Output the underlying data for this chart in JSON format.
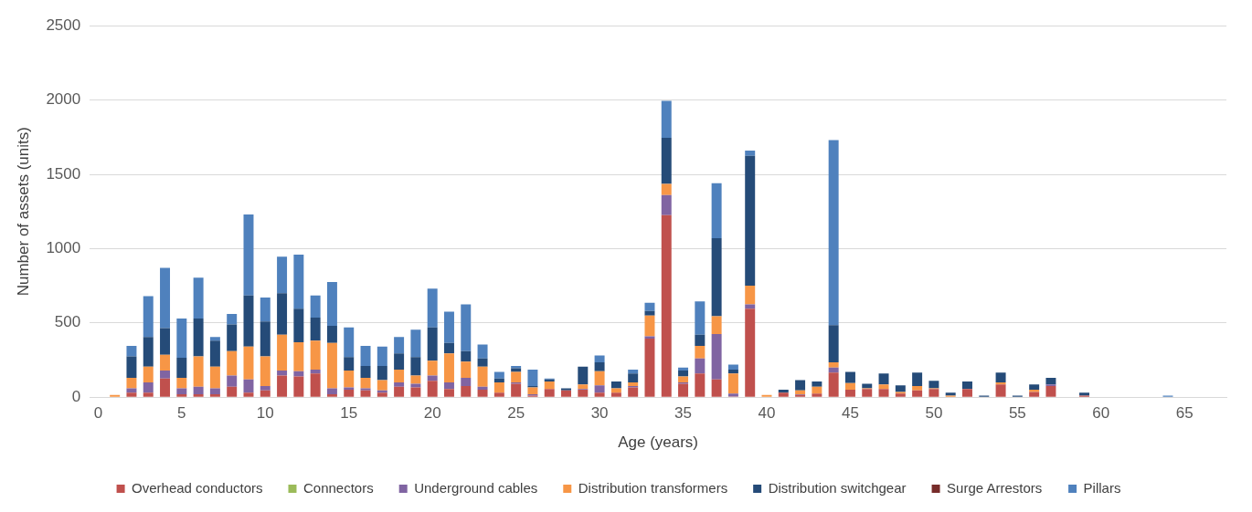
{
  "chart_data": {
    "type": "bar",
    "stacked": true,
    "xlabel": "Age (years)",
    "ylabel": "Number of assets (units)",
    "ylim": [
      0,
      2500
    ],
    "yticks": [
      0,
      500,
      1000,
      1500,
      2000,
      2500
    ],
    "grid": "y",
    "legend": "bottom",
    "categories": [
      "0",
      null,
      null,
      null,
      null,
      "5",
      null,
      null,
      null,
      null,
      "10",
      null,
      null,
      null,
      null,
      "15",
      null,
      null,
      null,
      null,
      "20",
      null,
      null,
      null,
      null,
      "25",
      null,
      null,
      null,
      null,
      "30",
      null,
      null,
      null,
      null,
      "35",
      null,
      null,
      null,
      null,
      "40",
      null,
      null,
      null,
      null,
      "45",
      null,
      null,
      null,
      null,
      "50",
      null,
      null,
      null,
      null,
      "55",
      null,
      null,
      null,
      null,
      "60",
      null,
      null,
      null,
      null,
      "65",
      null,
      null
    ],
    "series": [
      {
        "name": "Overhead conductors",
        "color": "#c0504d",
        "values": [
          0,
          0,
          30,
          30,
          125,
          20,
          20,
          20,
          70,
          30,
          45,
          145,
          140,
          160,
          20,
          50,
          45,
          30,
          70,
          65,
          110,
          55,
          75,
          50,
          30,
          90,
          10,
          55,
          45,
          50,
          30,
          30,
          65,
          395,
          1225,
          90,
          160,
          120,
          5,
          595,
          0,
          30,
          15,
          25,
          165,
          50,
          55,
          55,
          25,
          45,
          55,
          0,
          55,
          0,
          85,
          0,
          35,
          75,
          0,
          10,
          0,
          0,
          0,
          0,
          0,
          0,
          0,
          0
        ]
      },
      {
        "name": "Connectors",
        "color": "#9bbb59",
        "values": [
          0,
          0,
          0,
          0,
          0,
          0,
          0,
          0,
          0,
          0,
          0,
          0,
          0,
          0,
          0,
          0,
          0,
          0,
          0,
          0,
          0,
          0,
          0,
          0,
          0,
          0,
          0,
          0,
          0,
          0,
          0,
          0,
          0,
          0,
          0,
          0,
          0,
          0,
          0,
          0,
          0,
          0,
          0,
          0,
          0,
          0,
          0,
          0,
          0,
          0,
          0,
          0,
          0,
          0,
          0,
          0,
          0,
          0,
          0,
          0,
          0,
          0,
          0,
          0,
          0,
          0,
          0,
          0
        ]
      },
      {
        "name": "Underground cables",
        "color": "#8064a2",
        "values": [
          0,
          0,
          30,
          70,
          55,
          40,
          50,
          40,
          75,
          90,
          30,
          35,
          35,
          25,
          40,
          15,
          15,
          15,
          30,
          25,
          35,
          45,
          55,
          20,
          0,
          10,
          10,
          0,
          0,
          5,
          50,
          0,
          10,
          15,
          135,
          10,
          100,
          305,
          20,
          30,
          0,
          0,
          5,
          0,
          35,
          0,
          0,
          0,
          0,
          0,
          0,
          0,
          0,
          0,
          0,
          0,
          0,
          10,
          0,
          0,
          0,
          0,
          0,
          0,
          0,
          0,
          0,
          0
        ]
      },
      {
        "name": "Distribution transformers",
        "color": "#f79646",
        "values": [
          0,
          15,
          70,
          105,
          105,
          70,
          205,
          145,
          165,
          220,
          200,
          240,
          195,
          195,
          305,
          115,
          70,
          70,
          85,
          55,
          100,
          195,
          110,
          135,
          70,
          70,
          45,
          50,
          0,
          30,
          95,
          30,
          25,
          140,
          75,
          40,
          85,
          120,
          135,
          125,
          15,
          0,
          25,
          45,
          35,
          45,
          5,
          30,
          10,
          30,
          5,
          10,
          0,
          0,
          15,
          0,
          15,
          0,
          0,
          0,
          0,
          0,
          0,
          0,
          0,
          0,
          0,
          0
        ]
      },
      {
        "name": "Distribution switchgear",
        "color": "#254b78",
        "values": [
          0,
          0,
          145,
          200,
          180,
          135,
          255,
          175,
          180,
          345,
          235,
          280,
          225,
          155,
          115,
          90,
          80,
          95,
          110,
          125,
          225,
          70,
          70,
          55,
          25,
          25,
          10,
          15,
          15,
          120,
          60,
          45,
          60,
          30,
          310,
          40,
          75,
          525,
          25,
          875,
          0,
          20,
          70,
          35,
          250,
          75,
          30,
          75,
          45,
          90,
          50,
          20,
          50,
          10,
          65,
          10,
          35,
          45,
          0,
          20,
          0,
          0,
          0,
          0,
          0,
          0,
          0,
          0
        ]
      },
      {
        "name": "Surge Arrestors",
        "color": "#772c2a",
        "values": [
          0,
          0,
          0,
          0,
          0,
          0,
          0,
          0,
          0,
          0,
          0,
          0,
          0,
          0,
          0,
          0,
          0,
          0,
          0,
          0,
          0,
          0,
          0,
          0,
          0,
          0,
          0,
          0,
          0,
          0,
          0,
          0,
          0,
          0,
          0,
          0,
          0,
          0,
          0,
          0,
          0,
          0,
          0,
          0,
          0,
          0,
          0,
          0,
          0,
          0,
          0,
          0,
          0,
          0,
          0,
          0,
          0,
          0,
          0,
          0,
          0,
          0,
          0,
          0,
          0,
          0,
          0,
          0
        ]
      },
      {
        "name": "Pillars",
        "color": "#4f81bd",
        "values": [
          0,
          0,
          70,
          275,
          405,
          265,
          275,
          25,
          70,
          545,
          160,
          245,
          365,
          150,
          295,
          200,
          135,
          130,
          110,
          185,
          260,
          210,
          315,
          95,
          45,
          15,
          110,
          5,
          0,
          0,
          45,
          0,
          25,
          55,
          250,
          20,
          225,
          370,
          35,
          35,
          0,
          0,
          0,
          0,
          1245,
          0,
          0,
          0,
          0,
          0,
          0,
          0,
          0,
          0,
          0,
          0,
          0,
          0,
          0,
          0,
          0,
          0,
          0,
          0,
          10,
          0,
          0,
          0
        ]
      }
    ]
  }
}
